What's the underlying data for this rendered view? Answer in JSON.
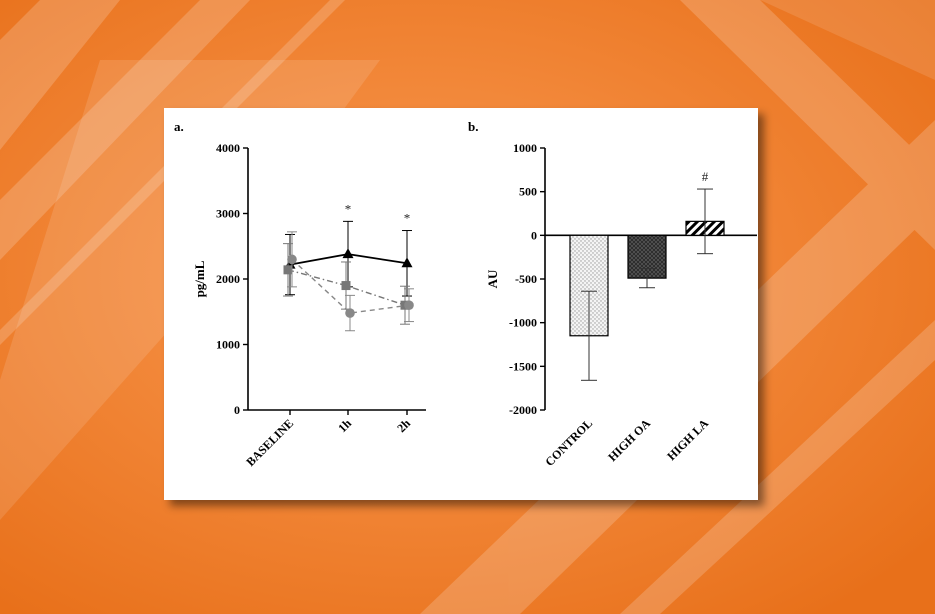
{
  "chart_data": [
    {
      "panel_label": "a.",
      "type": "line",
      "ylabel": "pg/mL",
      "ylim": [
        0,
        4000
      ],
      "yticks": [
        0,
        1000,
        2000,
        3000,
        4000
      ],
      "categories": [
        "BASELINE",
        "1h",
        "2h"
      ],
      "grid": false,
      "series": [
        {
          "marker": "triangle",
          "line": "solid",
          "color": "#000000",
          "values": [
            2220,
            2380,
            2240
          ],
          "err": [
            460,
            500,
            500
          ]
        },
        {
          "marker": "square",
          "line": "dash-dot",
          "color": "#777777",
          "values": [
            2140,
            1900,
            1600
          ],
          "err": [
            400,
            360,
            290
          ]
        },
        {
          "marker": "circle",
          "line": "dashed",
          "color": "#888888",
          "values": [
            2300,
            1480,
            1600
          ],
          "err": [
            420,
            270,
            250
          ]
        }
      ],
      "annotations": [
        {
          "x": "1h",
          "text": "*"
        },
        {
          "x": "2h",
          "text": "*"
        }
      ]
    },
    {
      "panel_label": "b.",
      "type": "bar",
      "ylabel": "AU",
      "ylim": [
        -2000,
        1000
      ],
      "yticks": [
        -2000,
        -1500,
        -1000,
        -500,
        0,
        500,
        1000
      ],
      "categories": [
        "CONTROL",
        "HIGH OA",
        "HIGH LA"
      ],
      "values": [
        -1150,
        -490,
        160
      ],
      "err": [
        510,
        110,
        370
      ],
      "fills": [
        "dotted",
        "crosshatch",
        "diagonal-stripes"
      ],
      "grid": false,
      "annotations": [
        {
          "x": "HIGH LA",
          "text": "#"
        }
      ]
    }
  ]
}
